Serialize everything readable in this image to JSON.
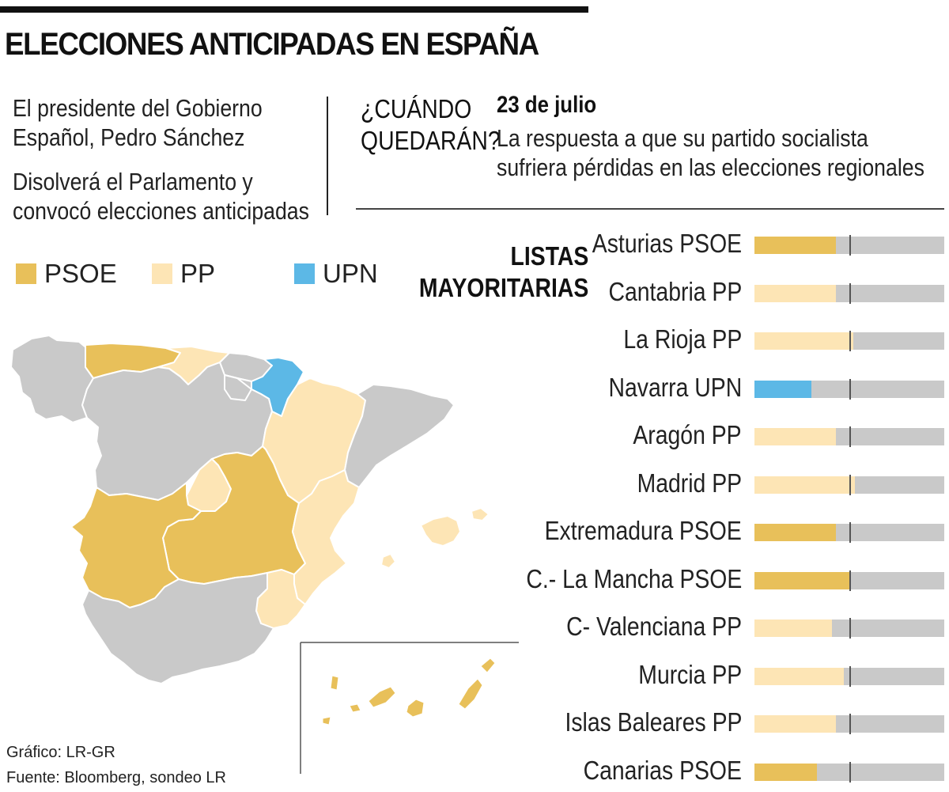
{
  "header": {
    "title": "ELECCIONES ANTICIPADAS EN ESPAÑA"
  },
  "intro": {
    "line1": "El presidente del Gobierno",
    "line2": "Español, Pedro Sánchez",
    "line3": "Disolverá el Parlamento y",
    "line4": "convocó elecciones anticipadas"
  },
  "when": {
    "question_line1": "¿CUÁNDO",
    "question_line2": "QUEDARÁN?",
    "date": "23 de julio",
    "desc_line1": "La respuesta a que su partido socialista",
    "desc_line2": "sufriera pérdidas en las elecciones regionales"
  },
  "legend": [
    {
      "label": "PSOE",
      "color": "#e8c05a"
    },
    {
      "label": "PP",
      "color": "#fde5b5"
    },
    {
      "label": "UPN",
      "color": "#5cb8e6"
    }
  ],
  "section_label": {
    "line1": "LISTAS",
    "line2": "MAYORITARIAS"
  },
  "credits": {
    "grafico": "Gráfico: LR-GR",
    "fuente": "Fuente: Bloomberg, sondeo LR"
  },
  "chart_data": {
    "type": "bar",
    "title": "LISTAS MAYORITARIAS",
    "orientation": "horizontal",
    "value_unit": "share of seats (fraction of bar)",
    "majority_marker": 0.5,
    "xlim": [
      0,
      1
    ],
    "categories": [
      "Asturias PSOE",
      "Cantabria PP",
      "La Rioja PP",
      "Navarra UPN",
      "Aragón PP",
      "Madrid PP",
      "Extremadura PSOE",
      "C.- La Mancha PSOE",
      "C- Valenciana PP",
      "Murcia PP",
      "Islas Baleares PP",
      "Canarias PSOE"
    ],
    "values": [
      0.43,
      0.43,
      0.52,
      0.3,
      0.43,
      0.53,
      0.43,
      0.51,
      0.41,
      0.47,
      0.43,
      0.33
    ],
    "parties": [
      "PSOE",
      "PP",
      "PP",
      "UPN",
      "PP",
      "PP",
      "PSOE",
      "PSOE",
      "PP",
      "PP",
      "PP",
      "PSOE"
    ]
  },
  "colors": {
    "PSOE": "#e8c05a",
    "PP": "#fde5b5",
    "UPN": "#5cb8e6",
    "other": "#c9c9c9"
  }
}
